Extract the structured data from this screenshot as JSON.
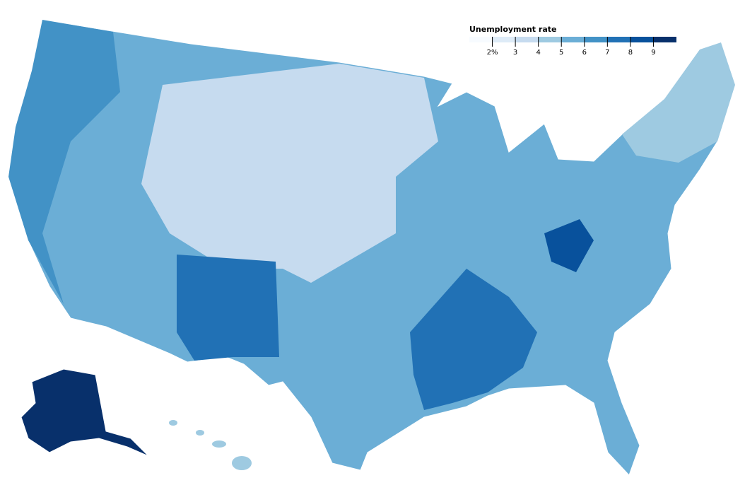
{
  "legend": {
    "title": "Unemployment rate",
    "domain": [
      1,
      10
    ],
    "ticks": [
      {
        "value": 2,
        "label": "2%"
      },
      3,
      4,
      5,
      6,
      7,
      8,
      9
    ],
    "colors": [
      "#f7fbff",
      "#deebf7",
      "#c6dbef",
      "#9ecae1",
      "#6baed6",
      "#4292c6",
      "#2171b5",
      "#08519c",
      "#08306b"
    ]
  }
}
